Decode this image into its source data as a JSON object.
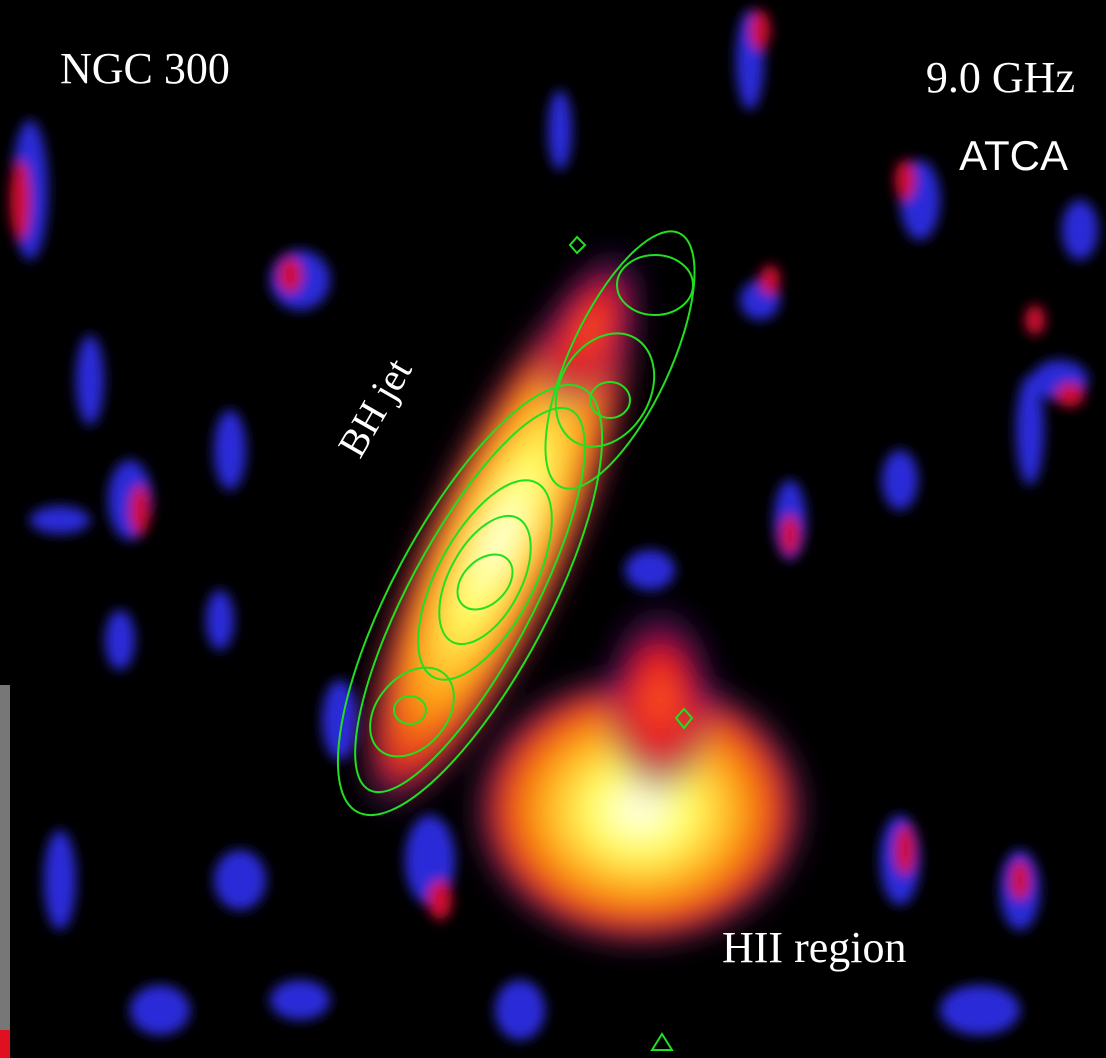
{
  "labels": {
    "target": "NGC 300",
    "frequency": "9.0 GHz",
    "telescope": "ATCA",
    "jet": "BH jet",
    "region": "HII region"
  }
}
